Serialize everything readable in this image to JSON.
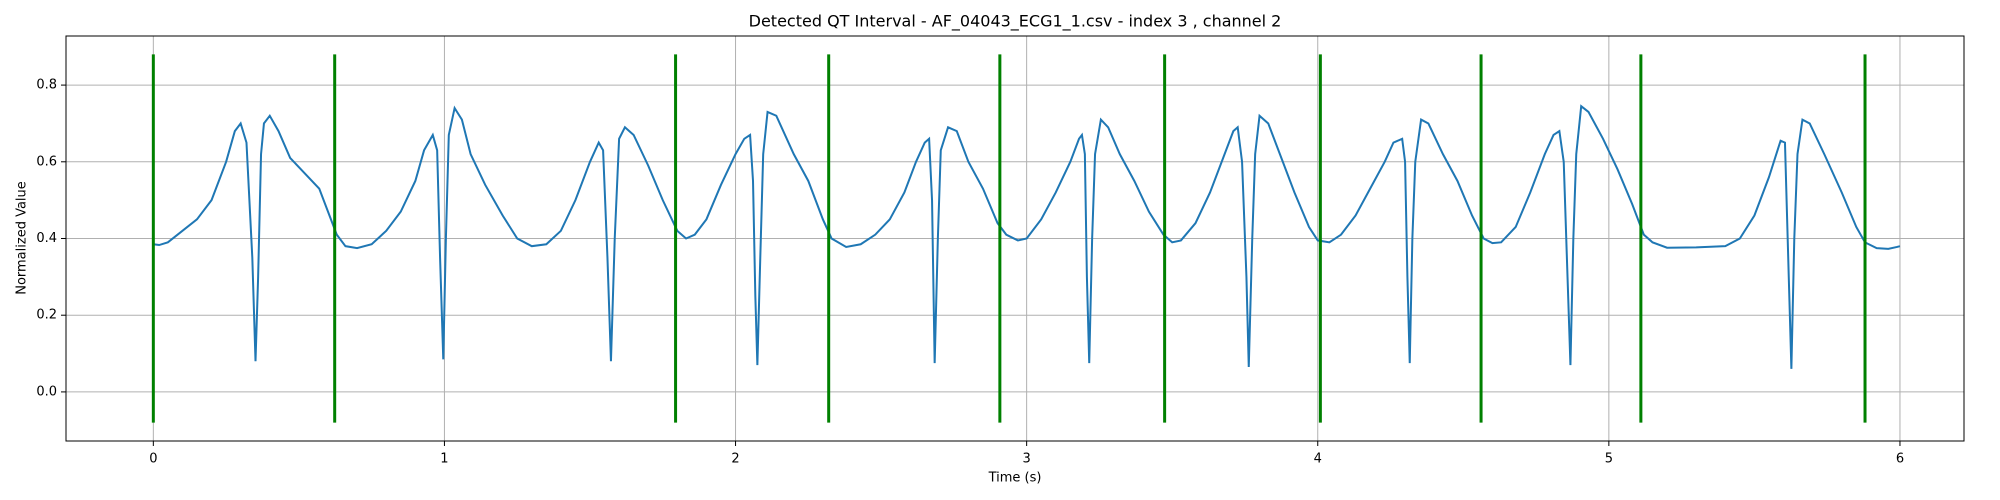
{
  "chart_data": {
    "type": "line",
    "title": "Detected QT Interval - AF_04043_ECG1_1.csv - index 3 , channel 2",
    "xlabel": "Time (s)",
    "ylabel": "Normalized Value",
    "x": [
      0,
      0.02,
      0.05,
      0.1,
      0.15,
      0.2,
      0.25,
      0.28,
      0.3,
      0.32,
      0.34,
      0.351,
      0.36,
      0.37,
      0.38,
      0.4,
      0.43,
      0.47,
      0.52,
      0.57,
      0.6,
      0.63,
      0.66,
      0.7,
      0.75,
      0.8,
      0.85,
      0.9,
      0.93,
      0.96,
      0.975,
      0.985,
      0.996,
      1.005,
      1.015,
      1.035,
      1.06,
      1.09,
      1.14,
      1.2,
      1.25,
      1.3,
      1.35,
      1.4,
      1.45,
      1.5,
      1.53,
      1.545,
      1.56,
      1.572,
      1.585,
      1.6,
      1.62,
      1.65,
      1.7,
      1.75,
      1.8,
      1.83,
      1.86,
      1.9,
      1.95,
      2.0,
      2.03,
      2.05,
      2.06,
      2.068,
      2.075,
      2.085,
      2.095,
      2.11,
      2.14,
      2.2,
      2.25,
      2.3,
      2.33,
      2.38,
      2.43,
      2.48,
      2.53,
      2.58,
      2.62,
      2.65,
      2.665,
      2.675,
      2.684,
      2.695,
      2.705,
      2.73,
      2.76,
      2.8,
      2.85,
      2.9,
      2.93,
      2.97,
      3.0,
      3.05,
      3.1,
      3.15,
      3.18,
      3.19,
      3.2,
      3.207,
      3.215,
      3.225,
      3.235,
      3.255,
      3.28,
      3.32,
      3.37,
      3.42,
      3.47,
      3.5,
      3.53,
      3.58,
      3.63,
      3.68,
      3.71,
      3.725,
      3.74,
      3.755,
      3.763,
      3.775,
      3.785,
      3.8,
      3.83,
      3.87,
      3.92,
      3.97,
      4.0,
      4.04,
      4.08,
      4.13,
      4.18,
      4.23,
      4.26,
      4.29,
      4.3,
      4.308,
      4.316,
      4.325,
      4.335,
      4.355,
      4.38,
      4.43,
      4.48,
      4.53,
      4.57,
      4.6,
      4.63,
      4.68,
      4.73,
      4.78,
      4.81,
      4.83,
      4.845,
      4.858,
      4.868,
      4.878,
      4.888,
      4.905,
      4.93,
      4.98,
      5.03,
      5.08,
      5.12,
      5.15,
      5.2,
      5.3,
      5.4,
      5.45,
      5.5,
      5.55,
      5.59,
      5.605,
      5.618,
      5.627,
      5.637,
      5.648,
      5.665,
      5.69,
      5.74,
      5.8,
      5.85,
      5.88,
      5.92,
      5.96,
      5.99,
      6.0
    ],
    "series": [
      {
        "color": "#1f77b4",
        "values": [
          0.385,
          0.383,
          0.39,
          0.42,
          0.45,
          0.5,
          0.6,
          0.68,
          0.7,
          0.65,
          0.35,
          0.08,
          0.3,
          0.62,
          0.7,
          0.72,
          0.68,
          0.61,
          0.57,
          0.53,
          0.47,
          0.41,
          0.38,
          0.375,
          0.385,
          0.42,
          0.47,
          0.55,
          0.63,
          0.67,
          0.63,
          0.35,
          0.085,
          0.4,
          0.67,
          0.74,
          0.71,
          0.62,
          0.54,
          0.46,
          0.4,
          0.38,
          0.385,
          0.42,
          0.5,
          0.6,
          0.65,
          0.63,
          0.35,
          0.08,
          0.4,
          0.66,
          0.69,
          0.67,
          0.59,
          0.5,
          0.42,
          0.4,
          0.41,
          0.45,
          0.54,
          0.62,
          0.66,
          0.67,
          0.55,
          0.25,
          0.07,
          0.35,
          0.62,
          0.73,
          0.72,
          0.62,
          0.55,
          0.45,
          0.4,
          0.378,
          0.385,
          0.41,
          0.45,
          0.52,
          0.6,
          0.65,
          0.66,
          0.5,
          0.075,
          0.4,
          0.63,
          0.69,
          0.68,
          0.6,
          0.53,
          0.44,
          0.41,
          0.395,
          0.4,
          0.45,
          0.52,
          0.6,
          0.66,
          0.67,
          0.62,
          0.3,
          0.075,
          0.4,
          0.62,
          0.71,
          0.69,
          0.62,
          0.55,
          0.47,
          0.41,
          0.39,
          0.395,
          0.44,
          0.52,
          0.62,
          0.68,
          0.69,
          0.6,
          0.3,
          0.065,
          0.4,
          0.62,
          0.72,
          0.7,
          0.62,
          0.52,
          0.43,
          0.395,
          0.39,
          0.41,
          0.46,
          0.53,
          0.6,
          0.65,
          0.66,
          0.6,
          0.3,
          0.075,
          0.4,
          0.6,
          0.71,
          0.7,
          0.62,
          0.55,
          0.46,
          0.4,
          0.388,
          0.39,
          0.43,
          0.52,
          0.62,
          0.67,
          0.68,
          0.6,
          0.3,
          0.07,
          0.4,
          0.62,
          0.745,
          0.73,
          0.66,
          0.58,
          0.49,
          0.41,
          0.39,
          0.376,
          0.377,
          0.38,
          0.4,
          0.46,
          0.56,
          0.655,
          0.65,
          0.3,
          0.06,
          0.4,
          0.62,
          0.71,
          0.7,
          0.62,
          0.52,
          0.43,
          0.39,
          0.375,
          0.373,
          0.378,
          0.38
        ]
      }
    ],
    "vlines": {
      "color": "green",
      "ymin": -0.08,
      "ymax": 0.88,
      "x": [
        0,
        0.623,
        1.794,
        2.32,
        2.908,
        3.474,
        4.009,
        4.561,
        5.11,
        5.88
      ]
    },
    "xlim": [
      -0.3,
      6.22
    ],
    "ylim": [
      -0.128,
      0.928
    ],
    "xticks": [
      0,
      1,
      2,
      3,
      4,
      5,
      6
    ],
    "yticks": [
      {
        "value": 0,
        "label": "0.0"
      },
      0.2,
      0.4,
      0.6,
      0.8
    ],
    "grid": true
  }
}
